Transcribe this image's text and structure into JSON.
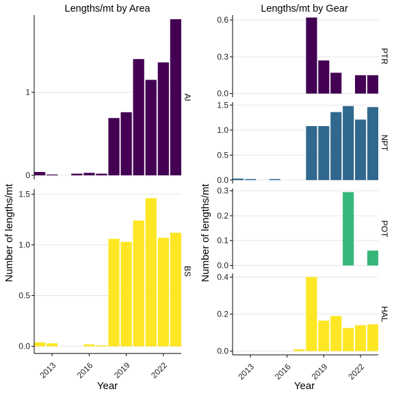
{
  "x_ticks": [
    "2013",
    "2016",
    "2019",
    "2022"
  ],
  "colors": {
    "AI": "#440154",
    "BS": "#fde725",
    "PTR": "#440154",
    "NPT": "#31688e",
    "POT": "#35b779",
    "HAL": "#fde725",
    "grid": "#e5e5e5",
    "axis": "#000000"
  },
  "chart_data": [
    {
      "type": "bar",
      "title": "Lengths/mt by Area",
      "xlabel": "Year",
      "ylabel": "Number of lengths/mt",
      "x": [
        2012,
        2013,
        2014,
        2015,
        2016,
        2017,
        2018,
        2019,
        2020,
        2021,
        2022,
        2023
      ],
      "xlim": [
        2011.55,
        2023.45
      ],
      "x_ticks": [
        2013,
        2016,
        2019,
        2022
      ],
      "facets": [
        {
          "strip": "AI",
          "ylim": [
            -0.05,
            1.93
          ],
          "y_ticks": [
            0,
            1
          ],
          "y_tick_labels": [
            "0",
            "1"
          ],
          "values": [
            0.04,
            0.01,
            0.0,
            0.02,
            0.03,
            0.02,
            0.69,
            0.76,
            1.4,
            1.15,
            1.36,
            1.88
          ]
        },
        {
          "strip": "BS",
          "ylim": [
            -0.07,
            1.55
          ],
          "y_ticks": [
            0,
            0.5,
            1.0,
            1.5
          ],
          "y_tick_labels": [
            "0.0",
            "0.5",
            "1.0",
            "1.5"
          ],
          "values": [
            0.04,
            0.03,
            0.0,
            0.0,
            0.02,
            0.01,
            1.06,
            1.03,
            1.24,
            1.46,
            1.07,
            1.12
          ]
        }
      ]
    },
    {
      "type": "bar",
      "title": "Lengths/mt by Gear",
      "xlabel": "Year",
      "ylabel": "Number of lengths/mt",
      "x": [
        2012,
        2013,
        2014,
        2015,
        2016,
        2017,
        2018,
        2019,
        2020,
        2021,
        2022,
        2023
      ],
      "xlim": [
        2011.55,
        2023.45
      ],
      "x_ticks": [
        2013,
        2016,
        2019,
        2022
      ],
      "facets": [
        {
          "strip": "PTR",
          "ylim": [
            -0.03,
            0.64
          ],
          "y_ticks": [
            0,
            0.3,
            0.6
          ],
          "y_tick_labels": [
            "0.0",
            "0.3",
            "0.6"
          ],
          "values": [
            0,
            0,
            0,
            0,
            0,
            0,
            0.62,
            0.27,
            0.17,
            0.0,
            0.15,
            0.15
          ]
        },
        {
          "strip": "NPT",
          "ylim": [
            -0.07,
            1.56
          ],
          "y_ticks": [
            0,
            0.5,
            1.0,
            1.5
          ],
          "y_tick_labels": [
            "0.0",
            "0.5",
            "1.0",
            "1.5"
          ],
          "values": [
            0.03,
            0.02,
            0.0,
            0.02,
            0.0,
            0.0,
            1.08,
            1.08,
            1.36,
            1.48,
            1.21,
            1.46
          ]
        },
        {
          "strip": "POT",
          "ylim": [
            -0.015,
            0.31
          ],
          "y_ticks": [
            0,
            0.1,
            0.2,
            0.3
          ],
          "y_tick_labels": [
            "0.0",
            "0.1",
            "0.2",
            "0.3"
          ],
          "values": [
            0,
            0,
            0,
            0,
            0,
            0,
            0,
            0,
            0,
            0.295,
            0,
            0.06
          ]
        },
        {
          "strip": "HAL",
          "ylim": [
            -0.02,
            0.42
          ],
          "y_ticks": [
            0,
            0.2,
            0.4
          ],
          "y_tick_labels": [
            "0.0",
            "0.2",
            "0.4"
          ],
          "values": [
            0,
            0,
            0,
            0,
            0,
            0.01,
            0.4,
            0.165,
            0.19,
            0.125,
            0.14,
            0.145
          ]
        }
      ]
    }
  ]
}
